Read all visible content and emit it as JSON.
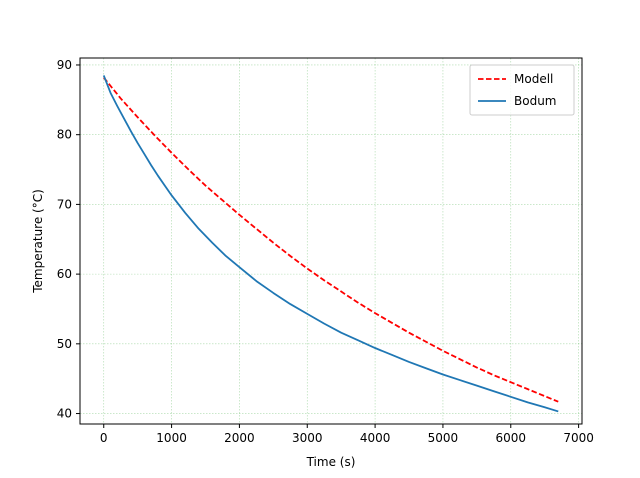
{
  "chart_data": {
    "type": "line",
    "title": "",
    "xlabel": "Time (s)",
    "ylabel": "Temperature (°C)",
    "xlim": [
      -350,
      7050
    ],
    "ylim": [
      38.5,
      91
    ],
    "xticks": [
      0,
      1000,
      2000,
      3000,
      4000,
      5000,
      6000,
      7000
    ],
    "yticks": [
      40,
      50,
      60,
      70,
      80,
      90
    ],
    "grid": true,
    "grid_color": "#2ca02c",
    "legend_position": "top-right",
    "series": [
      {
        "name": "Modell",
        "color": "#ff0000",
        "style": "dashed",
        "x": [
          0,
          250,
          500,
          750,
          1000,
          1250,
          1500,
          1750,
          2000,
          2250,
          2500,
          2750,
          3000,
          3250,
          3500,
          3750,
          4000,
          4250,
          4500,
          4750,
          5000,
          5250,
          5500,
          5750,
          6000,
          6250,
          6500,
          6700
        ],
        "y": [
          88.2,
          85.2,
          82.5,
          79.9,
          77.4,
          75.0,
          72.7,
          70.6,
          68.5,
          66.5,
          64.5,
          62.6,
          60.8,
          59.1,
          57.5,
          55.9,
          54.4,
          53.0,
          51.6,
          50.3,
          49.0,
          47.8,
          46.6,
          45.5,
          44.5,
          43.5,
          42.5,
          41.7
        ]
      },
      {
        "name": "Bodum",
        "color": "#1f77b4",
        "style": "solid",
        "x": [
          0,
          100,
          200,
          300,
          400,
          500,
          600,
          700,
          800,
          900,
          1000,
          1200,
          1400,
          1600,
          1800,
          2000,
          2250,
          2500,
          2750,
          3000,
          3250,
          3500,
          3750,
          4000,
          4250,
          4500,
          4750,
          5000,
          5250,
          5500,
          5750,
          6000,
          6250,
          6500,
          6700
        ],
        "y": [
          88.5,
          86.0,
          84.1,
          82.3,
          80.5,
          78.8,
          77.2,
          75.6,
          74.1,
          72.7,
          71.3,
          68.8,
          66.5,
          64.5,
          62.6,
          61.0,
          59.0,
          57.3,
          55.7,
          54.3,
          52.9,
          51.6,
          50.5,
          49.4,
          48.4,
          47.4,
          46.5,
          45.6,
          44.8,
          44.0,
          43.2,
          42.4,
          41.6,
          40.9,
          40.3
        ]
      }
    ]
  }
}
